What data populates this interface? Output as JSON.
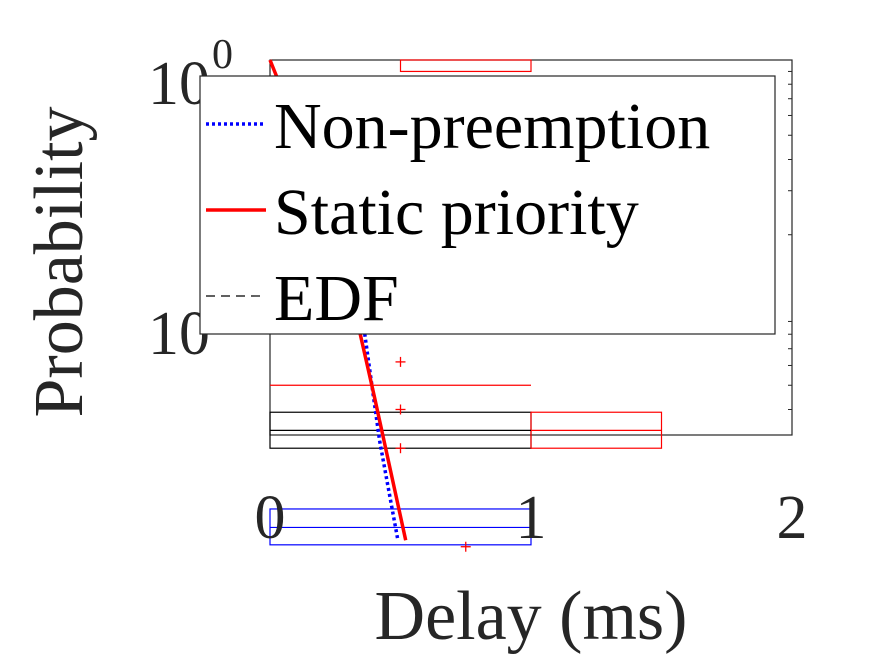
{
  "chart_data": {
    "type": "line",
    "title": "",
    "xlabel": "Delay (ms)",
    "ylabel": "Probability",
    "xlim": [
      0,
      2
    ],
    "ylim": [
      0.001,
      1
    ],
    "y_scale": "log",
    "grid": false,
    "legend_placement": "top-right",
    "x_ticks": [
      {
        "value": 0,
        "label": "0"
      },
      {
        "value": 1,
        "label": "1"
      },
      {
        "value": 2,
        "label": "2"
      }
    ],
    "y_ticks": [
      {
        "value": 1,
        "base": "10",
        "exp": "0"
      },
      {
        "value": 0.1,
        "base": "10",
        "exp": "-1"
      }
    ],
    "series": [
      {
        "name": "Non-preemption",
        "color": "#0000ff",
        "style": "dotted",
        "x": [
          0.35,
          0.42,
          0.49
        ],
        "y": [
          0.1,
          0.03,
          0.012
        ]
      },
      {
        "name": "Static priority",
        "color": "#ff0000",
        "style": "solid",
        "x": [
          0.0,
          0.1,
          0.2,
          0.3,
          0.4,
          0.52
        ],
        "y": [
          1.0,
          0.55,
          0.3,
          0.13,
          0.045,
          0.012
        ]
      },
      {
        "name": "EDF",
        "color": "#000000",
        "style": "dashed",
        "x": [],
        "y": []
      }
    ],
    "boxes": [
      {
        "color": "#ff0000",
        "x": [
          0.5,
          1.0
        ],
        "y": [
          0.9,
          1.0
        ]
      },
      {
        "color": "#000000",
        "x": [
          0,
          1.0
        ],
        "y": [
          0.028,
          0.039
        ]
      },
      {
        "color": "#ff0000",
        "x": [
          1.0,
          1.5
        ],
        "y": [
          0.028,
          0.039
        ]
      },
      {
        "color": "#0000ff",
        "x": [
          0,
          1.0
        ],
        "y": [
          0.0115,
          0.016
        ]
      }
    ],
    "median_lines": [
      {
        "color": "#ff0000",
        "x": [
          0,
          1.0
        ],
        "y": 0.05
      },
      {
        "color": "#000000",
        "x": [
          0,
          1.0
        ],
        "y": 0.033
      },
      {
        "color": "#ff0000",
        "x": [
          1.0,
          1.5
        ],
        "y": 0.033
      },
      {
        "color": "#0000ff",
        "x": [
          0,
          1.0
        ],
        "y": 0.0135
      }
    ],
    "outliers": [
      {
        "color": "#ff0000",
        "x": 0.5,
        "y": 0.062
      },
      {
        "color": "#ff0000",
        "x": 0.5,
        "y": 0.04
      },
      {
        "color": "#ff0000",
        "x": 0.5,
        "y": 0.028
      },
      {
        "color": "#ff0000",
        "x": 0.75,
        "y": 0.0113
      }
    ]
  }
}
